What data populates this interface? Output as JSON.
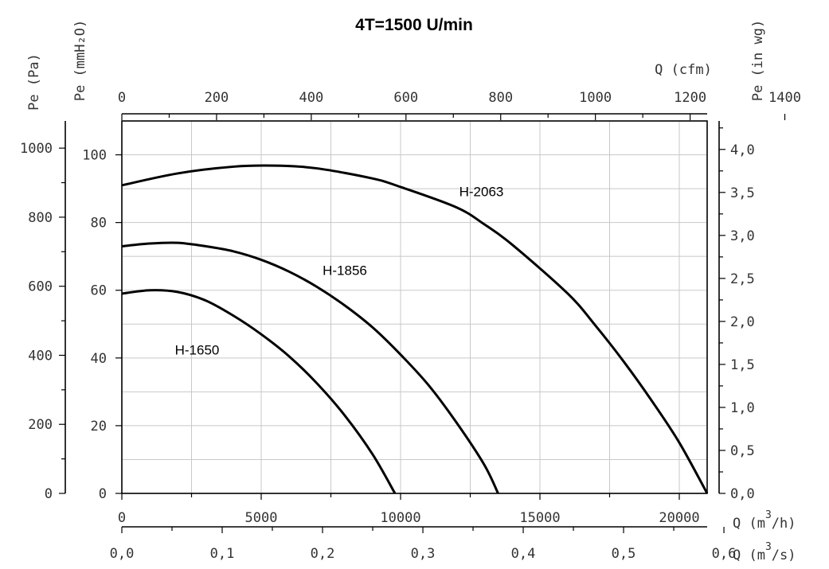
{
  "chart_data": {
    "type": "line",
    "title": "4T=1500 U/min",
    "axes": {
      "x_bottom": {
        "label": "Q (m³/h)",
        "label_base": "Q (m",
        "label_sup": "3",
        "label_end": "/h)",
        "range": [
          0,
          21000
        ],
        "ticks": [
          "0",
          "5000",
          "10000",
          "15000",
          "20000"
        ],
        "tick_values": [
          0,
          5000,
          10000,
          15000,
          20000
        ]
      },
      "x_bottom2": {
        "label": "Q (m³/s)",
        "label_base": "Q (m",
        "label_sup": "3",
        "label_end": "/s)",
        "range": [
          0,
          0.5833
        ],
        "ticks": [
          "0,0",
          "0,1",
          "0,2",
          "0,3",
          "0,4",
          "0,5",
          "0,6"
        ],
        "tick_values": [
          0,
          0.1,
          0.2,
          0.3,
          0.4,
          0.5,
          0.6
        ]
      },
      "x_top": {
        "label": "Q (cfm)",
        "range": [
          0,
          1236
        ],
        "ticks": [
          "0",
          "200",
          "400",
          "600",
          "800",
          "1000",
          "1200",
          "1400"
        ],
        "tick_values": [
          0,
          200,
          400,
          600,
          800,
          1000,
          1200,
          1400
        ]
      },
      "y_left_pa": {
        "label": "Pe (Pa)",
        "range": [
          0,
          1078.7
        ],
        "ticks": [
          "0",
          "200",
          "400",
          "600",
          "800",
          "1000"
        ],
        "tick_values": [
          0,
          200,
          400,
          600,
          800,
          1000
        ]
      },
      "y_left_mmh2o": {
        "label": "Pe (mmH₂O)",
        "range": [
          0,
          110
        ],
        "ticks": [
          "0",
          "20",
          "40",
          "60",
          "80",
          "100"
        ],
        "tick_values": [
          0,
          20,
          40,
          60,
          80,
          100
        ]
      },
      "y_right": {
        "label": "Pe (in wg)",
        "range": [
          0,
          4.331
        ],
        "ticks": [
          "0,0",
          "0,5",
          "1,0",
          "1,5",
          "2,0",
          "2,5",
          "3,0",
          "3,5",
          "4,0"
        ],
        "tick_values": [
          0,
          0.5,
          1,
          1.5,
          2,
          2.5,
          3,
          3.5,
          4
        ]
      }
    },
    "grid": true,
    "series": [
      {
        "name": "H-1650",
        "x": [
          0,
          1000,
          2000,
          3000,
          4000,
          5000,
          6000,
          7000,
          8000,
          9000,
          9800
        ],
        "y": [
          59,
          60,
          59.5,
          57,
          52.5,
          47,
          40.5,
          32.5,
          23,
          11.5,
          0
        ],
        "label_at": [
          2700,
          41
        ]
      },
      {
        "name": "H-1856",
        "x": [
          0,
          1000,
          2000,
          3000,
          4000,
          5000,
          6000,
          7000,
          8000,
          9000,
          10000,
          11000,
          12000,
          13000,
          13500
        ],
        "y": [
          73,
          73.8,
          74,
          73,
          71.5,
          69,
          65.5,
          61,
          55.5,
          49,
          41,
          32,
          21,
          8.5,
          0
        ],
        "label_at": [
          8000,
          64.5
        ]
      },
      {
        "name": "H-2063",
        "x": [
          0,
          2000,
          4000,
          5500,
          7000,
          9000,
          10000,
          12000,
          13000,
          14000,
          16000,
          17000,
          18000,
          19000,
          20000,
          21000
        ],
        "y": [
          91,
          94.5,
          96.5,
          96.8,
          96,
          93,
          90.5,
          84.5,
          79.5,
          73.5,
          59,
          49.5,
          39,
          27.5,
          15,
          0
        ],
        "label_at": [
          12900,
          87.8
        ]
      }
    ]
  }
}
